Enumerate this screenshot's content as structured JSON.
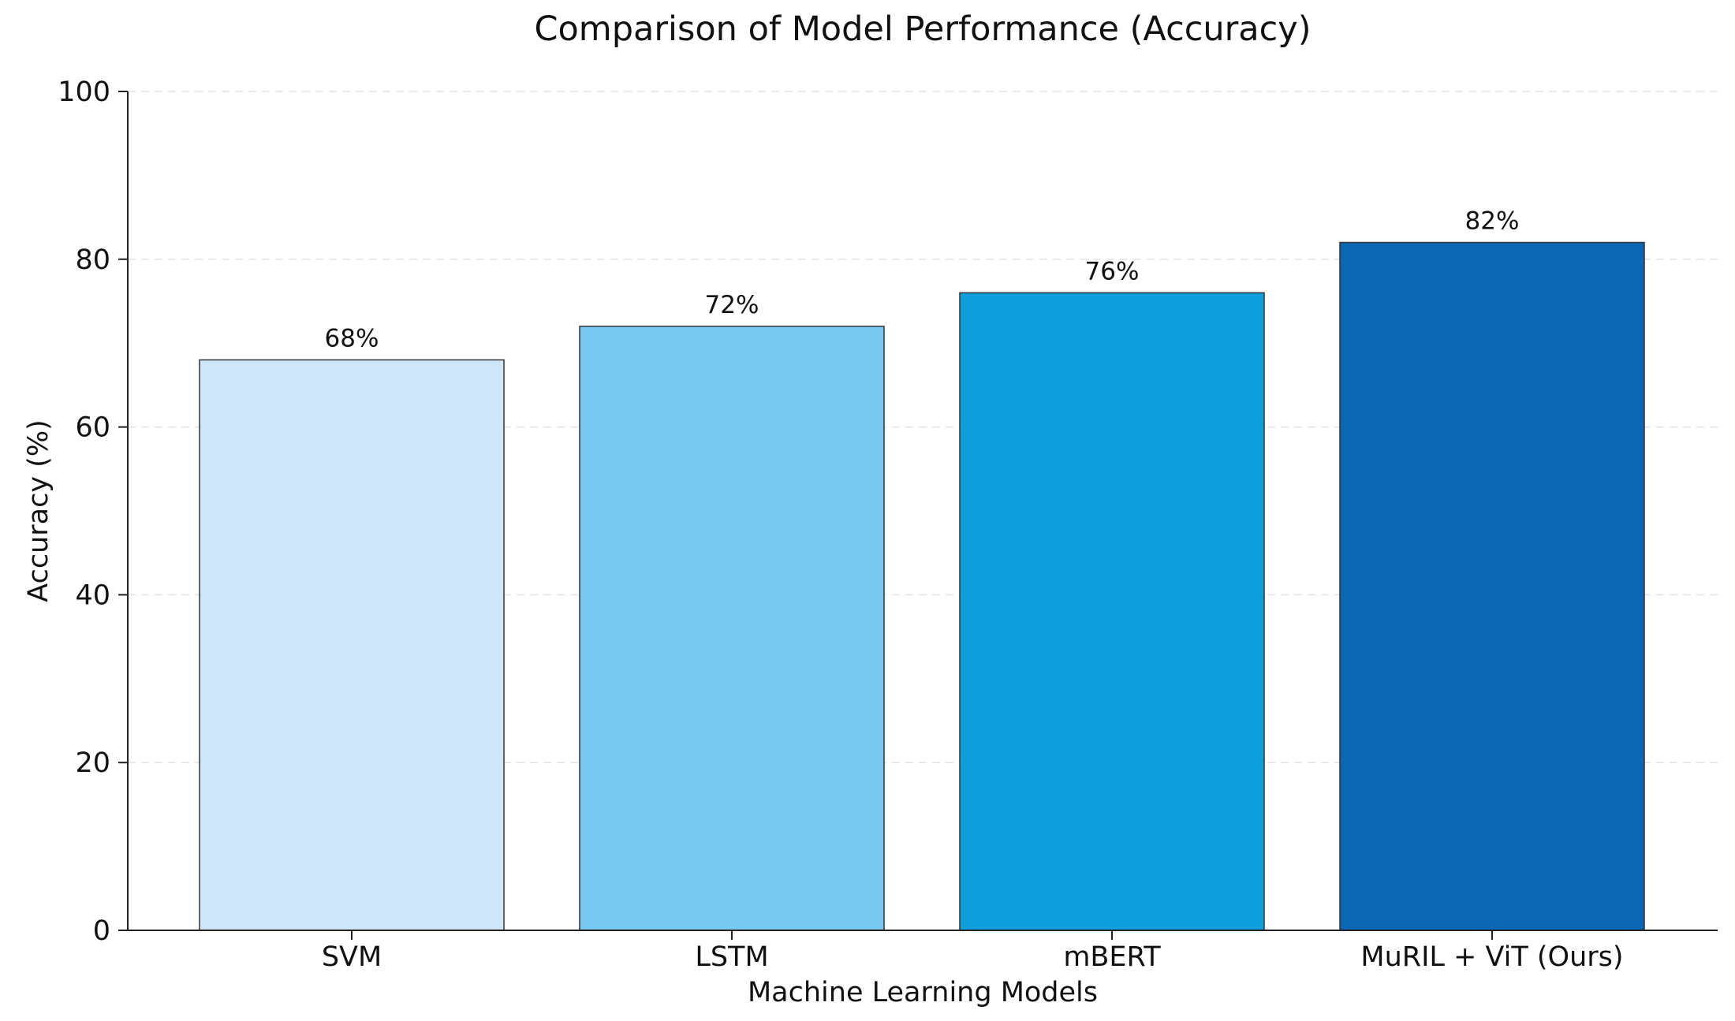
{
  "chart_data": {
    "type": "bar",
    "title": "Comparison of Model Performance (Accuracy)",
    "xlabel": "Machine Learning Models",
    "ylabel": "Accuracy (%)",
    "categories": [
      "SVM",
      "LSTM",
      "mBERT",
      "MuRIL + ViT (Ours)"
    ],
    "values": [
      68,
      72,
      76,
      82
    ],
    "data_labels": [
      "68%",
      "72%",
      "76%",
      "82%"
    ],
    "bar_colors": [
      "#cfe6f8",
      "#77c9f1",
      "#0f9fdc",
      "#0b66b3"
    ],
    "ylim": [
      0,
      100
    ],
    "yticks": [
      "0",
      "20",
      "40",
      "60",
      "80",
      "100"
    ],
    "grid": true,
    "grid_style": "dashed horizontal",
    "legend": "none"
  }
}
